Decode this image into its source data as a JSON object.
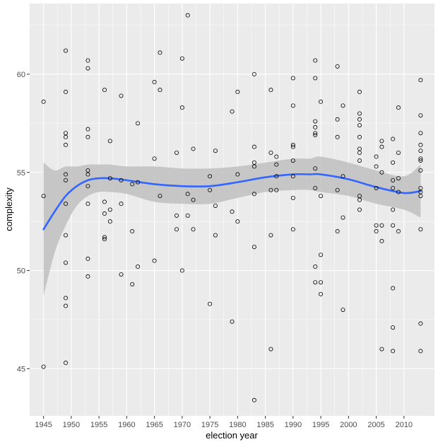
{
  "chart_data": {
    "type": "scatter",
    "xlabel": "election year",
    "ylabel": "complexity",
    "xlim": [
      1942.5,
      2015.5
    ],
    "ylim": [
      42.6,
      63.6
    ],
    "x_ticks": [
      1945,
      1950,
      1955,
      1960,
      1965,
      1970,
      1975,
      1980,
      1985,
      1990,
      1995,
      2000,
      2005,
      2010
    ],
    "y_ticks": [
      45,
      50,
      55,
      60
    ],
    "grid": true,
    "legend": "none",
    "colors": {
      "panel": "#ebebeb",
      "grid": "#ffffff",
      "points": "#000000",
      "smooth": "#3366ff",
      "band": "#bfbfbf"
    },
    "points": [
      [
        1945,
        58.6
      ],
      [
        1945,
        53.8
      ],
      [
        1945,
        45.1
      ],
      [
        1949,
        61.2
      ],
      [
        1949,
        59.1
      ],
      [
        1949,
        57.0
      ],
      [
        1949,
        56.8
      ],
      [
        1949,
        56.4
      ],
      [
        1949,
        54.9
      ],
      [
        1949,
        54.6
      ],
      [
        1949,
        53.4
      ],
      [
        1949,
        51.8
      ],
      [
        1949,
        50.4
      ],
      [
        1949,
        48.6
      ],
      [
        1949,
        48.2
      ],
      [
        1949,
        45.3
      ],
      [
        1953,
        60.7
      ],
      [
        1953,
        60.3
      ],
      [
        1953,
        57.2
      ],
      [
        1953,
        56.8
      ],
      [
        1953,
        55.1
      ],
      [
        1953,
        54.9
      ],
      [
        1953,
        54.3
      ],
      [
        1953,
        53.4
      ],
      [
        1953,
        50.6
      ],
      [
        1953,
        49.7
      ],
      [
        1956,
        59.2
      ],
      [
        1956,
        53.5
      ],
      [
        1956,
        52.9
      ],
      [
        1956,
        51.7
      ],
      [
        1956,
        51.6
      ],
      [
        1957,
        56.6
      ],
      [
        1957,
        54.7
      ],
      [
        1957,
        53.1
      ],
      [
        1957,
        52.5
      ],
      [
        1959,
        58.9
      ],
      [
        1959,
        54.6
      ],
      [
        1959,
        53.4
      ],
      [
        1959,
        49.8
      ],
      [
        1961,
        54.4
      ],
      [
        1961,
        52.0
      ],
      [
        1961,
        49.3
      ],
      [
        1962,
        57.5
      ],
      [
        1962,
        54.5
      ],
      [
        1962,
        50.2
      ],
      [
        1965,
        59.6
      ],
      [
        1965,
        55.7
      ],
      [
        1965,
        50.5
      ],
      [
        1966,
        61.1
      ],
      [
        1966,
        59.2
      ],
      [
        1966,
        53.8
      ],
      [
        1969,
        56.0
      ],
      [
        1969,
        52.8
      ],
      [
        1969,
        52.1
      ],
      [
        1970,
        60.8
      ],
      [
        1970,
        58.3
      ],
      [
        1970,
        50.0
      ],
      [
        1971,
        63.0
      ],
      [
        1971,
        53.9
      ],
      [
        1971,
        52.8
      ],
      [
        1972,
        56.2
      ],
      [
        1972,
        53.6
      ],
      [
        1972,
        52.1
      ],
      [
        1975,
        54.8
      ],
      [
        1975,
        54.1
      ],
      [
        1975,
        48.3
      ],
      [
        1976,
        56.1
      ],
      [
        1976,
        53.3
      ],
      [
        1976,
        51.8
      ],
      [
        1979,
        58.1
      ],
      [
        1979,
        53.0
      ],
      [
        1979,
        47.4
      ],
      [
        1980,
        59.1
      ],
      [
        1980,
        54.9
      ],
      [
        1980,
        52.5
      ],
      [
        1983,
        60.0
      ],
      [
        1983,
        56.3
      ],
      [
        1983,
        55.5
      ],
      [
        1983,
        55.3
      ],
      [
        1983,
        53.9
      ],
      [
        1983,
        51.2
      ],
      [
        1983,
        43.4
      ],
      [
        1986,
        59.2
      ],
      [
        1986,
        56.0
      ],
      [
        1986,
        54.1
      ],
      [
        1986,
        51.8
      ],
      [
        1986,
        46.0
      ],
      [
        1987,
        55.8
      ],
      [
        1987,
        55.4
      ],
      [
        1987,
        54.8
      ],
      [
        1987,
        54.1
      ],
      [
        1990,
        59.8
      ],
      [
        1990,
        58.4
      ],
      [
        1990,
        56.4
      ],
      [
        1990,
        56.3
      ],
      [
        1990,
        55.6
      ],
      [
        1990,
        54.8
      ],
      [
        1990,
        53.7
      ],
      [
        1990,
        52.1
      ],
      [
        1994,
        60.7
      ],
      [
        1994,
        59.8
      ],
      [
        1994,
        57.6
      ],
      [
        1994,
        57.3
      ],
      [
        1994,
        57.0
      ],
      [
        1994,
        56.9
      ],
      [
        1994,
        55.2
      ],
      [
        1994,
        54.2
      ],
      [
        1994,
        50.2
      ],
      [
        1994,
        49.4
      ],
      [
        1995,
        58.6
      ],
      [
        1995,
        53.8
      ],
      [
        1995,
        50.8
      ],
      [
        1995,
        49.4
      ],
      [
        1995,
        48.8
      ],
      [
        1998,
        60.4
      ],
      [
        1998,
        57.7
      ],
      [
        1998,
        56.8
      ],
      [
        1998,
        54.1
      ],
      [
        1998,
        52.0
      ],
      [
        1999,
        58.4
      ],
      [
        1999,
        54.8
      ],
      [
        1999,
        52.7
      ],
      [
        1999,
        48.0
      ],
      [
        2002,
        59.1
      ],
      [
        2002,
        58.0
      ],
      [
        2002,
        57.7
      ],
      [
        2002,
        57.4
      ],
      [
        2002,
        56.8
      ],
      [
        2002,
        56.2
      ],
      [
        2002,
        56.0
      ],
      [
        2002,
        55.6
      ],
      [
        2002,
        53.8
      ],
      [
        2002,
        53.6
      ],
      [
        2002,
        53.1
      ],
      [
        2005,
        55.8
      ],
      [
        2005,
        55.3
      ],
      [
        2005,
        54.2
      ],
      [
        2005,
        52.3
      ],
      [
        2005,
        52.0
      ],
      [
        2006,
        56.6
      ],
      [
        2006,
        56.3
      ],
      [
        2006,
        55.0
      ],
      [
        2006,
        52.3
      ],
      [
        2006,
        51.5
      ],
      [
        2006,
        46.0
      ],
      [
        2008,
        56.7
      ],
      [
        2008,
        55.5
      ],
      [
        2008,
        54.6
      ],
      [
        2008,
        54.2
      ],
      [
        2008,
        53.1
      ],
      [
        2008,
        52.3
      ],
      [
        2008,
        49.1
      ],
      [
        2008,
        47.1
      ],
      [
        2008,
        45.9
      ],
      [
        2009,
        58.3
      ],
      [
        2009,
        56.0
      ],
      [
        2009,
        54.7
      ],
      [
        2009,
        54.0
      ],
      [
        2009,
        52.0
      ],
      [
        2013,
        59.7
      ],
      [
        2013,
        57.9
      ],
      [
        2013,
        57.0
      ],
      [
        2013,
        56.4
      ],
      [
        2013,
        56.1
      ],
      [
        2013,
        55.7
      ],
      [
        2013,
        55.6
      ],
      [
        2013,
        55.1
      ],
      [
        2013,
        54.2
      ],
      [
        2013,
        54.0
      ],
      [
        2013,
        53.8
      ],
      [
        2013,
        52.1
      ],
      [
        2013,
        47.3
      ],
      [
        2013,
        45.9
      ]
    ],
    "smooth": {
      "method": "loess",
      "x": [
        1945,
        1947,
        1949,
        1951,
        1953,
        1955,
        1957,
        1960,
        1965,
        1970,
        1975,
        1980,
        1985,
        1990,
        1993,
        1995,
        2000,
        2005,
        2010,
        2013
      ],
      "y": [
        52.1,
        53.0,
        53.8,
        54.3,
        54.6,
        54.7,
        54.7,
        54.6,
        54.4,
        54.3,
        54.3,
        54.5,
        54.75,
        54.9,
        54.9,
        54.9,
        54.65,
        54.25,
        53.95,
        54.05
      ],
      "lower": [
        48.7,
        50.9,
        52.3,
        53.3,
        53.8,
        54.0,
        54.0,
        53.9,
        53.5,
        53.4,
        53.4,
        53.7,
        54.0,
        54.1,
        54.1,
        54.0,
        53.8,
        53.4,
        53.1,
        52.7
      ],
      "upper": [
        55.5,
        55.1,
        55.3,
        55.3,
        55.4,
        55.4,
        55.4,
        55.3,
        55.3,
        55.2,
        55.2,
        55.3,
        55.5,
        55.7,
        55.7,
        55.8,
        55.5,
        55.1,
        54.8,
        55.4
      ]
    }
  }
}
